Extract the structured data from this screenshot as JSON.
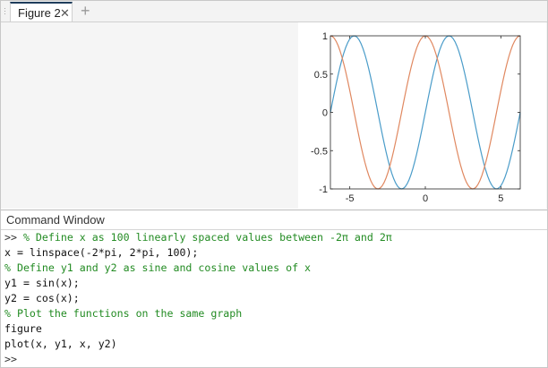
{
  "tabs": [
    {
      "label": "Figure 2",
      "close_icon": "close-icon"
    }
  ],
  "add_tab_icon": "plus-icon",
  "command_window": {
    "title": "Command Window",
    "lines": [
      {
        "prompt": ">> ",
        "text": "% Define x as 100 linearly spaced values between -2π and 2π",
        "type": "comment"
      },
      {
        "prompt": "",
        "text": "x = linspace(-2*pi, 2*pi, 100);",
        "type": "code"
      },
      {
        "prompt": "",
        "text": "% Define y1 and y2 as sine and cosine values of x",
        "type": "comment"
      },
      {
        "prompt": "",
        "text": "y1 = sin(x);",
        "type": "code"
      },
      {
        "prompt": "",
        "text": "y2 = cos(x);",
        "type": "code"
      },
      {
        "prompt": "",
        "text": "% Plot the functions on the same graph",
        "type": "comment"
      },
      {
        "prompt": "",
        "text": "figure",
        "type": "code"
      },
      {
        "prompt": "",
        "text": "plot(x, y1, x, y2)",
        "type": "code"
      },
      {
        "prompt": ">>",
        "text": "",
        "type": "code"
      }
    ]
  },
  "chart_data": {
    "type": "line",
    "x": {
      "start": -6.283185,
      "end": 6.283185,
      "count": 100
    },
    "xlim": [
      -6.283185,
      6.283185
    ],
    "ylim": [
      -1,
      1
    ],
    "xticks": [
      -5,
      0,
      5
    ],
    "xtick_labels": [
      "-5",
      "0",
      "5"
    ],
    "yticks": [
      -1,
      -0.5,
      0,
      0.5,
      1
    ],
    "ytick_labels": [
      "-1",
      "-0.5",
      "0",
      "0.5",
      "1"
    ],
    "grid": false,
    "series": [
      {
        "function": "sin",
        "color": "#4a9cc9"
      },
      {
        "function": "cos",
        "color": "#e08860"
      }
    ]
  }
}
